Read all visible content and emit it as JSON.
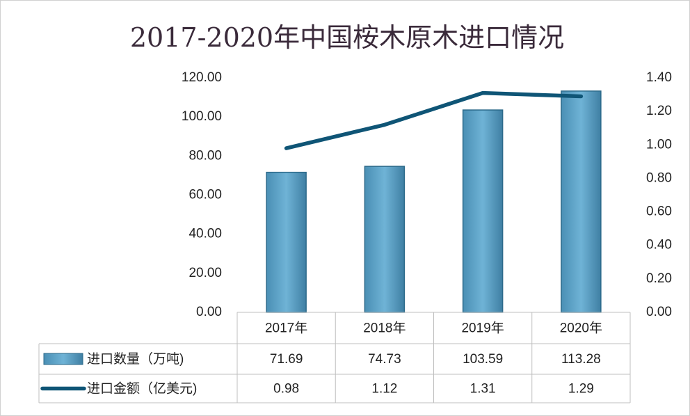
{
  "chart_data": {
    "type": "bar+line",
    "title": "2017-2020年中国桉木原木进口情况",
    "categories": [
      "2017年",
      "2018年",
      "2019年",
      "2020年"
    ],
    "series": [
      {
        "name": "进口数量（万吨)",
        "type": "bar",
        "axis": "left",
        "values": [
          71.69,
          74.73,
          103.59,
          113.28
        ],
        "labels": [
          "71.69",
          "74.73",
          "103.59",
          "113.28"
        ]
      },
      {
        "name": "进口金额（亿美元)",
        "type": "line",
        "axis": "right",
        "values": [
          0.98,
          1.12,
          1.31,
          1.29
        ],
        "labels": [
          "0.98",
          "1.12",
          "1.31",
          "1.29"
        ]
      }
    ],
    "y_left": {
      "min": 0,
      "max": 120,
      "ticks": [
        "0.00",
        "20.00",
        "40.00",
        "60.00",
        "80.00",
        "100.00",
        "120.00"
      ]
    },
    "y_right": {
      "min": 0,
      "max": 1.4,
      "ticks": [
        "0.00",
        "0.20",
        "0.40",
        "0.60",
        "0.80",
        "1.00",
        "1.20",
        "1.40"
      ]
    },
    "grid": false,
    "legend_placement": "data-table-bottom",
    "colors": {
      "bar": "#5ba3c9",
      "bar_stroke": "#2c6a8a",
      "line": "#0f5576",
      "title": "#3a2a3a",
      "table_border": "#bfbfbf"
    }
  }
}
